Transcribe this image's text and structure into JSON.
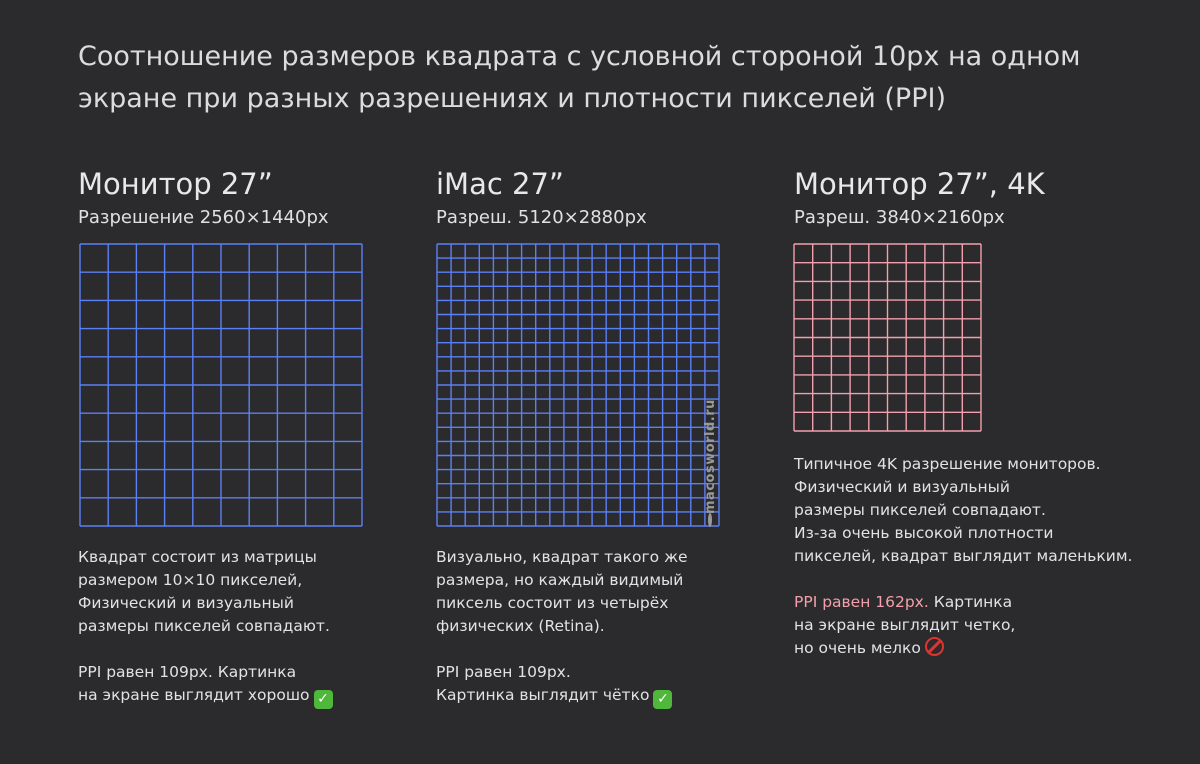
{
  "title": {
    "line1": "Соотношение размеров квадрата с условной стороной 10px на одном",
    "line2": "экране при разных разрешениях и плотности пикселей (PPI)"
  },
  "columns": [
    {
      "heading": "Монитор 27”",
      "resolution": "Разрешение 2560×1440px",
      "grid": {
        "cells": 10,
        "color": "#5b7ff5"
      },
      "desc": [
        "Квадрат состоит из матрицы",
        "размером 10×10 пикселей,",
        "Физический и визуальный",
        "размеры пикселей совпадают."
      ],
      "ppi": [
        "PPI равен 109px. Картинка",
        "на экране выглядит хорошо"
      ],
      "status_icon": "check-mark-icon"
    },
    {
      "heading": "iMac 27”",
      "resolution": "Разреш. 5120×2880px",
      "grid": {
        "cells": 20,
        "color": "#5b7ff5"
      },
      "desc": [
        "Визуально, квадрат такого же",
        "размера, но каждый видимый",
        "пиксель состоит из четырёх",
        "физических (Retina)."
      ],
      "ppi": [
        "PPI равен 109px.",
        "Картинка выглядит чётко"
      ],
      "status_icon": "check-mark-icon"
    },
    {
      "heading": "Монитор 27”, 4K",
      "resolution": "Разреш. 3840×2160px",
      "grid": {
        "cells": 10,
        "color": "#f2a0ab"
      },
      "desc": [
        "Типичное 4K разрешение мониторов.",
        "Физический и визуальный",
        "размеры пикселей совпадают.",
        "Из-за очень высокой плотности",
        "пикселей, квадрат выглядит маленьким."
      ],
      "ppi_highlight": "PPI равен 162px.",
      "ppi": [
        " Картинка",
        "на экране выглядит четко,",
        "но очень мелко"
      ],
      "status_icon": "prohibited-icon"
    }
  ],
  "watermark": "macosworld.ru"
}
